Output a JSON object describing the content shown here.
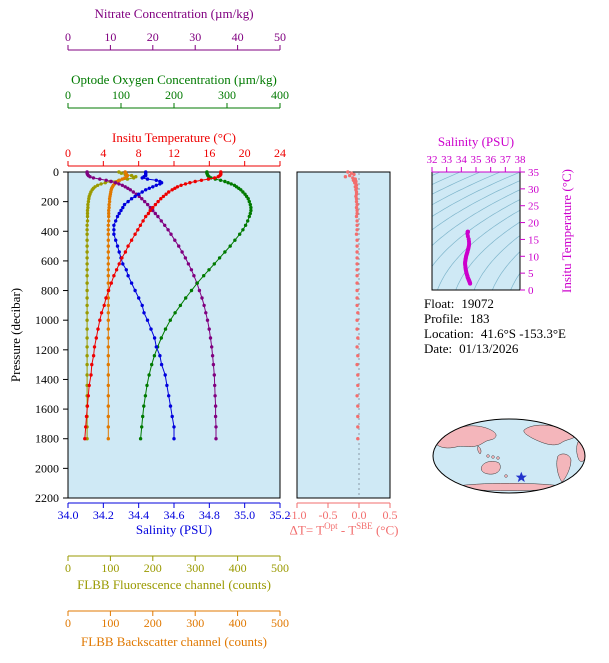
{
  "figure": {
    "background": "#ffffff",
    "panel_bg": "#cfe9f5",
    "contour_color": "#7fb6cc"
  },
  "axes": {
    "nitrate": {
      "label": "Nitrate Concentration (µm/kg)",
      "color": "#800080",
      "min": 0,
      "max": 50,
      "ticks": [
        "0",
        "10",
        "20",
        "30",
        "40",
        "50"
      ]
    },
    "oxygen": {
      "label": "Optode Oxygen Concentration (µm/kg)",
      "color": "#007a00",
      "min": 0,
      "max": 400,
      "ticks": [
        "0",
        "100",
        "200",
        "300",
        "400"
      ]
    },
    "temperature": {
      "label": "Insitu Temperature (°C)",
      "color": "#ee0000",
      "min": 0,
      "max": 24,
      "ticks": [
        "0",
        "4",
        "8",
        "12",
        "16",
        "20",
        "24"
      ]
    },
    "pressure": {
      "label": "Pressure (decibar)",
      "color": "#000000",
      "min": 0,
      "max": 2200,
      "ticks": [
        "0",
        "200",
        "400",
        "600",
        "800",
        "1000",
        "1200",
        "1400",
        "1600",
        "1800",
        "2000",
        "2200"
      ]
    },
    "salinity": {
      "label": "Salinity (PSU)",
      "color": "#0000dd",
      "min": 34.0,
      "max": 35.2,
      "ticks": [
        "34.0",
        "34.2",
        "34.4",
        "34.6",
        "34.8",
        "35.0",
        "35.2"
      ]
    },
    "fluorescence": {
      "label": "FLBB Fluorescence channel (counts)",
      "color": "#9a9a00",
      "min": 0,
      "max": 500,
      "ticks": [
        "0",
        "100",
        "200",
        "300",
        "400",
        "500"
      ]
    },
    "backscatter": {
      "label": "FLBB Backscatter channel (counts)",
      "color": "#e07800",
      "min": 0,
      "max": 500,
      "ticks": [
        "0",
        "100",
        "200",
        "300",
        "400",
        "500"
      ]
    },
    "delta_t": {
      "label_parts": {
        "prefix": "ΔT= T",
        "sup1": "Opt",
        "mid": " - T",
        "sup2": "SBE",
        "suffix": " (°C)"
      },
      "color": "#f26e6e",
      "min": -1.0,
      "max": 0.5,
      "ticks": [
        "-1.0",
        "-0.5",
        "0.0",
        "0.5"
      ]
    },
    "ts_salinity": {
      "label": "Salinity (PSU)",
      "color": "#cc00cc",
      "min": 32,
      "max": 38,
      "ticks": [
        "32",
        "33",
        "34",
        "35",
        "36",
        "37",
        "38"
      ]
    },
    "ts_temperature": {
      "label": "Insitu Temperature (°C)",
      "color": "#cc00cc",
      "min": 0,
      "max": 35,
      "ticks": [
        "0",
        "5",
        "10",
        "15",
        "20",
        "25",
        "30",
        "35"
      ]
    }
  },
  "info": {
    "float_label": "Float:",
    "float_value": "19072",
    "profile_label": "Profile:",
    "profile_value": "183",
    "location_label": "Location:",
    "location_value": "41.6°S -153.3°E",
    "date_label": "Date:",
    "date_value": "01/13/2026"
  },
  "map": {
    "ocean_color": "#cfe9f5",
    "land_color": "#f4b6bb",
    "outline_color": "#000000",
    "star_color": "#2233cc",
    "star_fx": 0.58,
    "star_fy": 0.78
  },
  "chart_data": [
    {
      "type": "line",
      "title": "Float vertical profiles",
      "ylabel": "Pressure (decibar)",
      "ylim": [
        0,
        2200
      ],
      "y_inverted": true,
      "grid": false,
      "pressure": [
        0,
        8,
        16,
        24,
        32,
        40,
        48,
        56,
        64,
        72,
        80,
        90,
        100,
        110,
        120,
        135,
        150,
        165,
        180,
        200,
        220,
        240,
        260,
        280,
        300,
        330,
        360,
        390,
        420,
        460,
        500,
        540,
        580,
        620,
        660,
        700,
        750,
        800,
        850,
        900,
        950,
        1000,
        1060,
        1120,
        1180,
        1240,
        1300,
        1370,
        1440,
        1510,
        1580,
        1650,
        1720,
        1800
      ],
      "series": [
        {
          "name": "FLBB Fluorescence channel (counts)",
          "color": "#9a9a00",
          "xlim": [
            0,
            500
          ],
          "values": [
            120,
            126,
            135,
            150,
            160,
            155,
            140,
            120,
            100,
            88,
            78,
            70,
            64,
            60,
            57,
            54,
            52,
            50,
            49,
            48,
            47,
            47,
            46,
            46,
            46,
            46,
            45,
            45,
            45,
            45,
            45,
            45,
            45,
            45,
            45,
            45,
            45,
            45,
            45,
            45,
            45,
            45,
            45,
            45,
            45,
            45,
            45,
            45,
            45,
            45,
            45,
            45,
            45,
            45
          ]
        },
        {
          "name": "FLBB Backscatter channel (counts)",
          "color": "#e07800",
          "xlim": [
            0,
            500
          ],
          "values": [
            135,
            136,
            138,
            140,
            138,
            134,
            128,
            122,
            117,
            113,
            110,
            107,
            105,
            103,
            102,
            101,
            100,
            99,
            98,
            98,
            97,
            97,
            96,
            96,
            96,
            96,
            95,
            95,
            95,
            95,
            95,
            95,
            95,
            95,
            95,
            95,
            95,
            95,
            95,
            95,
            95,
            95,
            95,
            95,
            95,
            95,
            95,
            95,
            95,
            95,
            95,
            95,
            95,
            95
          ]
        },
        {
          "name": "Nitrate Concentration (µm/kg)",
          "color": "#800080",
          "xlim": [
            0,
            50
          ],
          "values": [
            4.5,
            4.5,
            4.6,
            4.8,
            5.2,
            6.0,
            7.5,
            9.0,
            10.2,
            11.2,
            12.0,
            12.8,
            13.5,
            14.1,
            14.7,
            15.4,
            16.1,
            16.8,
            17.4,
            18.1,
            18.8,
            19.4,
            20.0,
            20.6,
            21.2,
            22.0,
            22.8,
            23.6,
            24.3,
            25.2,
            26.1,
            26.9,
            27.7,
            28.4,
            29.1,
            29.7,
            30.4,
            31.0,
            31.6,
            32.1,
            32.5,
            32.9,
            33.3,
            33.6,
            33.9,
            34.1,
            34.3,
            34.5,
            34.6,
            34.7,
            34.8,
            34.8,
            34.9,
            34.9
          ]
        },
        {
          "name": "Optode Oxygen Concentration (µm/kg)",
          "color": "#007a00",
          "xlim": [
            0,
            400
          ],
          "values": [
            262,
            262,
            263,
            264,
            266,
            270,
            278,
            288,
            296,
            302,
            308,
            314,
            318,
            322,
            326,
            330,
            334,
            337,
            340,
            342,
            344,
            345,
            345,
            344,
            342,
            339,
            335,
            330,
            324,
            315,
            306,
            296,
            286,
            276,
            266,
            256,
            244,
            233,
            222,
            212,
            202,
            193,
            184,
            176,
            169,
            163,
            158,
            153,
            149,
            146,
            143,
            141,
            139,
            137
          ]
        },
        {
          "name": "Salinity (PSU)",
          "color": "#0000dd",
          "xlim": [
            34.0,
            35.2
          ],
          "values": [
            34.44,
            34.44,
            34.44,
            34.44,
            34.43,
            34.42,
            34.45,
            34.5,
            34.52,
            34.53,
            34.52,
            34.5,
            34.48,
            34.46,
            34.44,
            34.42,
            34.4,
            34.38,
            34.36,
            34.34,
            34.32,
            34.31,
            34.3,
            34.29,
            34.28,
            34.27,
            34.26,
            34.26,
            34.26,
            34.27,
            34.28,
            34.29,
            34.3,
            34.31,
            34.33,
            34.34,
            34.36,
            34.38,
            34.4,
            34.42,
            34.43,
            34.45,
            34.47,
            34.49,
            34.5,
            34.52,
            34.53,
            34.55,
            34.56,
            34.57,
            34.58,
            34.59,
            34.6,
            34.6
          ]
        },
        {
          "name": "Insitu Temperature (°C)",
          "color": "#ee0000",
          "xlim": [
            0,
            24
          ],
          "values": [
            17.3,
            17.3,
            17.3,
            17.2,
            17.0,
            16.6,
            15.9,
            15.1,
            14.4,
            13.8,
            13.3,
            12.8,
            12.4,
            12.1,
            11.8,
            11.4,
            11.1,
            10.8,
            10.5,
            10.2,
            9.9,
            9.6,
            9.3,
            9.1,
            8.8,
            8.5,
            8.2,
            7.9,
            7.6,
            7.2,
            6.8,
            6.5,
            6.1,
            5.8,
            5.5,
            5.2,
            4.9,
            4.6,
            4.3,
            4.1,
            3.8,
            3.6,
            3.4,
            3.2,
            3.0,
            2.9,
            2.7,
            2.6,
            2.4,
            2.3,
            2.2,
            2.1,
            2.0,
            1.9
          ]
        }
      ]
    },
    {
      "type": "scatter",
      "title": "ΔT = TOpt - TSBE (°C)",
      "xlim": [
        -1.0,
        0.5
      ],
      "ylim": [
        0,
        2200
      ],
      "y_inverted": true,
      "zero_line": true,
      "pressure": [
        0,
        8,
        16,
        24,
        32,
        40,
        48,
        56,
        64,
        72,
        80,
        90,
        100,
        110,
        120,
        135,
        150,
        165,
        180,
        200,
        220,
        240,
        260,
        280,
        300,
        330,
        360,
        390,
        420,
        460,
        500,
        540,
        580,
        620,
        660,
        700,
        750,
        800,
        850,
        900,
        950,
        1000,
        1060,
        1120,
        1180,
        1240,
        1300,
        1370,
        1440,
        1510,
        1580,
        1650,
        1720,
        1800
      ],
      "values": [
        -0.18,
        -0.12,
        -0.08,
        -0.15,
        -0.22,
        -0.1,
        -0.06,
        -0.09,
        -0.05,
        -0.07,
        -0.05,
        -0.04,
        -0.06,
        -0.04,
        -0.05,
        -0.04,
        -0.04,
        -0.05,
        -0.04,
        -0.04,
        -0.03,
        -0.04,
        -0.03,
        -0.03,
        -0.04,
        -0.03,
        -0.03,
        -0.03,
        -0.04,
        -0.03,
        -0.03,
        -0.03,
        -0.03,
        -0.03,
        -0.03,
        -0.03,
        -0.03,
        -0.03,
        -0.03,
        -0.03,
        -0.02,
        -0.03,
        -0.03,
        -0.02,
        -0.03,
        -0.02,
        -0.03,
        -0.02,
        -0.02,
        -0.03,
        -0.02,
        -0.02,
        -0.02,
        -0.02
      ]
    },
    {
      "type": "scatter",
      "title": "T-S diagram",
      "xlabel": "Salinity (PSU)",
      "ylabel": "Insitu Temperature (°C)",
      "xlim": [
        32,
        38
      ],
      "ylim": [
        0,
        35
      ],
      "x_from": "Salinity (PSU)",
      "y_from": "Insitu Temperature (°C)",
      "isopycnal_levels": [
        18,
        19,
        20,
        21,
        22,
        23,
        24,
        25,
        26,
        27,
        28,
        29,
        30
      ],
      "color": "#cc00cc"
    }
  ]
}
